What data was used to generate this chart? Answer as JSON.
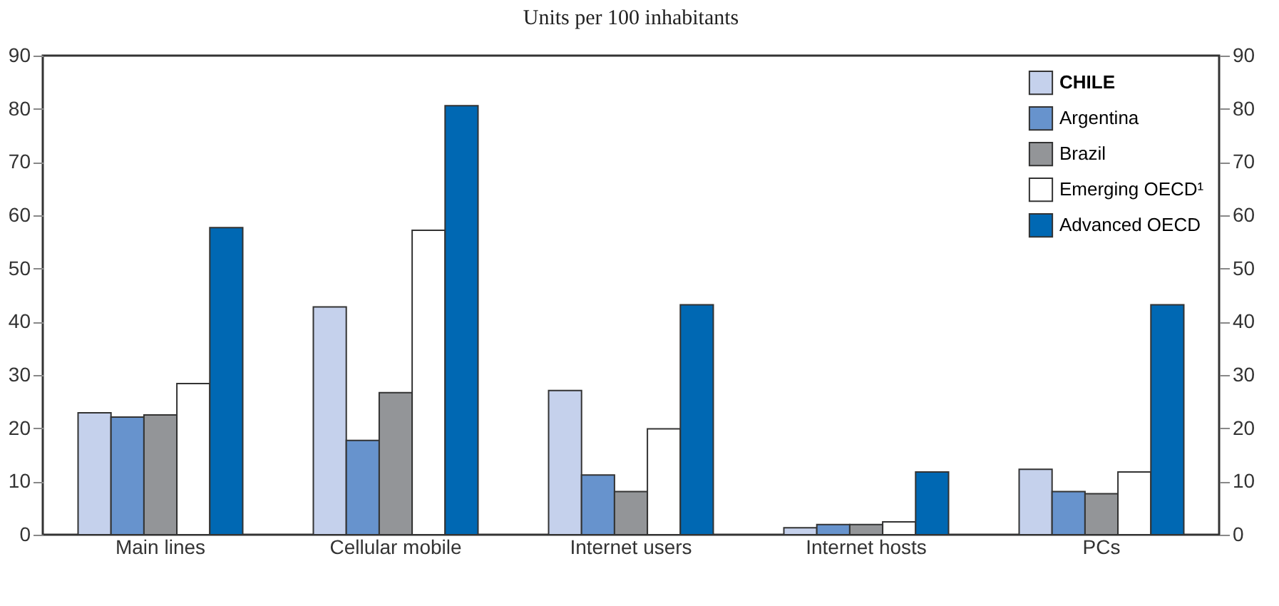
{
  "chart_data": {
    "type": "bar",
    "subtitle": "Units per 100 inhabitants",
    "categories": [
      "Main lines",
      "Cellular mobile",
      "Internet users",
      "Internet hosts",
      "PCs"
    ],
    "series": [
      {
        "name": "CHILE",
        "color": "#c5d1ec",
        "values": [
          22.9,
          42.8,
          27.1,
          1.3,
          12.3
        ]
      },
      {
        "name": "Argentina",
        "color": "#6793cd",
        "values": [
          22.1,
          17.7,
          11.2,
          1.9,
          8.1
        ]
      },
      {
        "name": "Brazil",
        "color": "#939598",
        "values": [
          22.5,
          26.7,
          8.1,
          1.9,
          7.7
        ]
      },
      {
        "name": "Emerging OECD¹",
        "color": "#ffffff",
        "values": [
          28.4,
          57.2,
          19.9,
          2.4,
          11.8
        ]
      },
      {
        "name": "Advanced OECD",
        "color": "#0068b3",
        "values": [
          57.7,
          80.6,
          43.2,
          11.8,
          43.2
        ]
      }
    ],
    "ylim": [
      0,
      90
    ],
    "yticks": [
      0,
      10,
      20,
      30,
      40,
      50,
      60,
      70,
      80,
      90
    ],
    "y2lim": [
      0,
      90
    ],
    "y2ticks": [
      0,
      10,
      20,
      30,
      40,
      50,
      60,
      70,
      80,
      90
    ],
    "grid": false,
    "legend": "top right"
  }
}
